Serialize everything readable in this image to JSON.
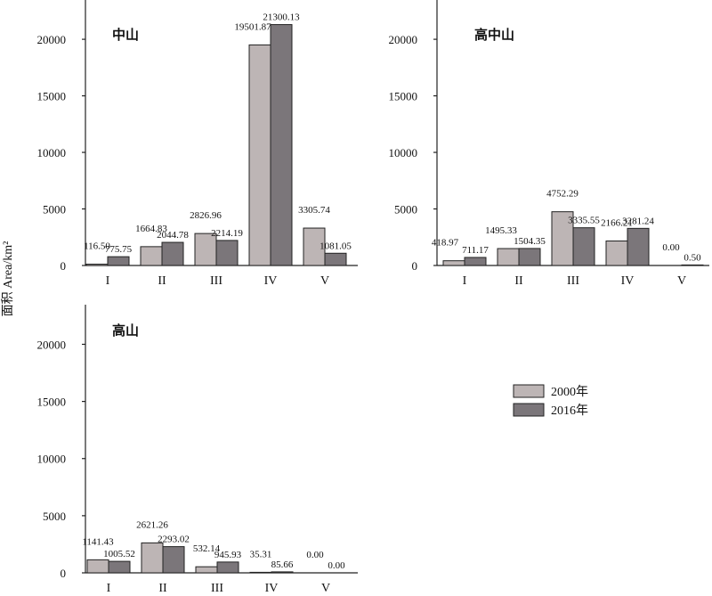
{
  "chart_data": {
    "type": "bar",
    "ylabel": "面积 Area/km²",
    "ylim": [
      0,
      23000
    ],
    "yticks": [
      0,
      5000,
      10000,
      15000,
      20000
    ],
    "categories": [
      "I",
      "II",
      "III",
      "IV",
      "V"
    ],
    "series_names": [
      "2000年",
      "2016年"
    ],
    "colors": {
      "s2000": "#bdb5b5",
      "s2016": "#7b767a"
    },
    "legend_position": "right-middle",
    "panels": [
      {
        "title": "中山",
        "series": [
          {
            "name": "2000年",
            "values": [
              116.5,
              1664.83,
              2826.96,
              19501.87,
              3305.74
            ],
            "labels": [
              "116.50",
              "1664.83",
              "2826.96",
              "19501.87",
              "3305.74"
            ]
          },
          {
            "name": "2016年",
            "values": [
              775.75,
              2044.78,
              2214.19,
              21300.13,
              1081.05
            ],
            "labels": [
              "775.75",
              "2044.78",
              "2214.19",
              "21300.13",
              "1081.05"
            ]
          }
        ]
      },
      {
        "title": "高中山",
        "series": [
          {
            "name": "2000年",
            "values": [
              418.97,
              1495.33,
              4752.29,
              2166.21,
              0.0
            ],
            "labels": [
              "418.97",
              "1495.33",
              "4752.29",
              "2166.21",
              "0.00"
            ]
          },
          {
            "name": "2016年",
            "values": [
              711.17,
              1504.35,
              3335.55,
              3281.24,
              0.5
            ],
            "labels": [
              "711.17",
              "1504.35",
              "3335.55",
              "3281.24",
              "0.50"
            ]
          }
        ]
      },
      {
        "title": "高山",
        "series": [
          {
            "name": "2000年",
            "values": [
              1141.43,
              2621.26,
              532.14,
              35.31,
              0.0
            ],
            "labels": [
              "1141.43",
              "2621.26",
              "532.14",
              "35.31",
              "0.00"
            ]
          },
          {
            "name": "2016年",
            "values": [
              1005.52,
              2293.02,
              945.93,
              85.66,
              0.0
            ],
            "labels": [
              "1005.52",
              "2293.02",
              "945.93",
              "85.66",
              "0.00"
            ]
          }
        ]
      }
    ]
  }
}
